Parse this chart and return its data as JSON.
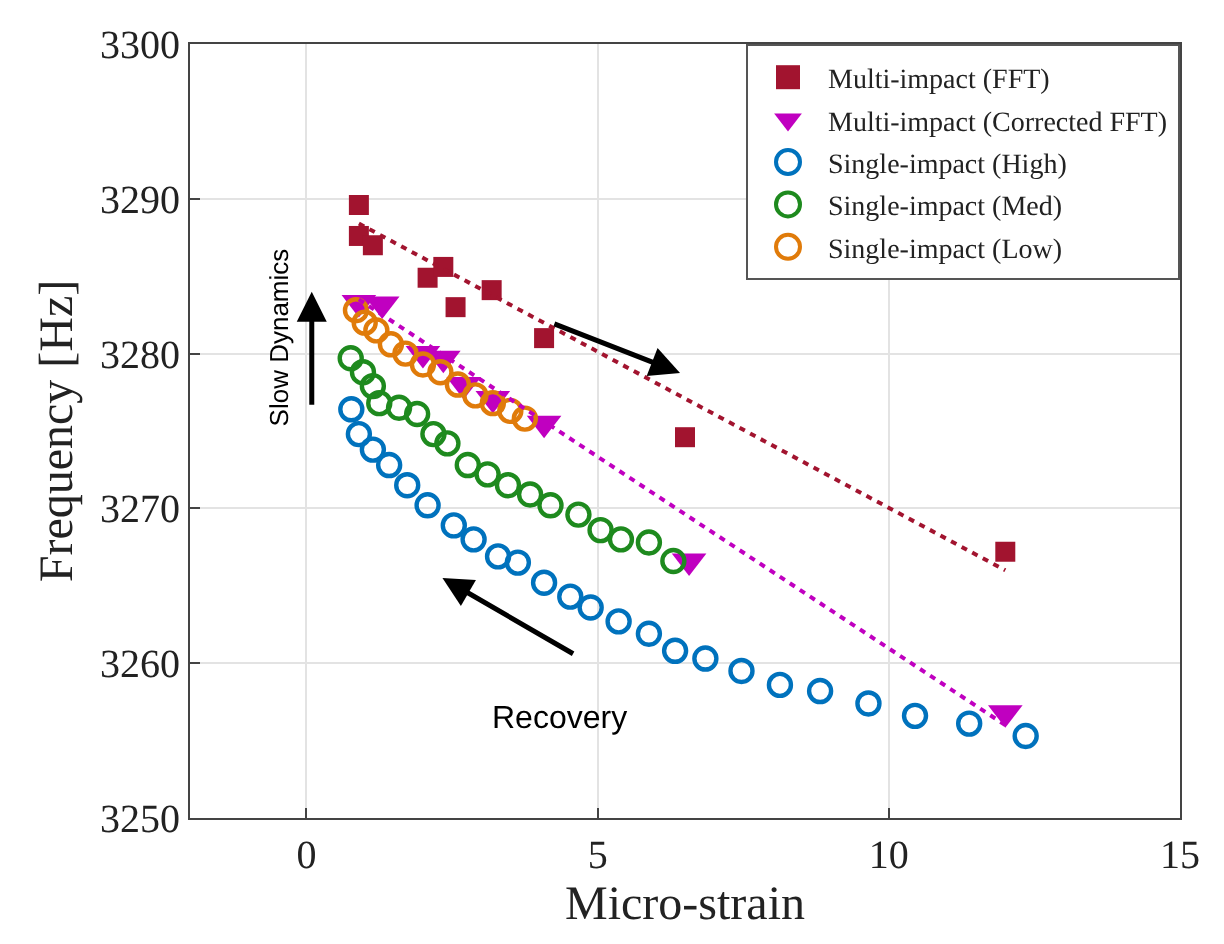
{
  "chart_data": {
    "type": "scatter",
    "xlabel": "Micro-strain",
    "ylabel": "Frequency [Hz]",
    "xlim": [
      -2,
      15
    ],
    "ylim": [
      3250,
      3300
    ],
    "xticks": [
      0,
      5,
      10,
      15
    ],
    "yticks": [
      3250,
      3260,
      3270,
      3280,
      3290,
      3300
    ],
    "grid": true,
    "legend": "top right",
    "annotations": [
      "Slow Dynamics",
      "Recovery"
    ],
    "series": [
      {
        "name": "Multi-impact (FFT)",
        "color": "#a2142f",
        "marker": "square",
        "x": [
          0.9,
          0.9,
          1.14,
          2.08,
          2.35,
          2.56,
          3.18,
          4.08,
          6.5,
          12.0
        ],
        "values": [
          3289.6,
          3287.6,
          3287.0,
          3284.9,
          3285.6,
          3283.0,
          3284.1,
          3281.0,
          3274.6,
          3267.2
        ]
      },
      {
        "name": "Multi-impact (Corrected FFT)",
        "color": "#c000c0",
        "marker": "triangle",
        "x": [
          0.9,
          1.3,
          2.0,
          2.35,
          2.7,
          3.2,
          4.08,
          6.57,
          12.0
        ],
        "values": [
          3283.3,
          3283.2,
          3280.0,
          3279.7,
          3278.0,
          3277.1,
          3275.5,
          3266.6,
          3256.8
        ]
      },
      {
        "name": "Single-impact (High)",
        "color": "#0072bd",
        "marker": "circle",
        "x": [
          0.77,
          0.9,
          1.14,
          1.42,
          1.73,
          2.08,
          2.53,
          2.87,
          3.29,
          3.63,
          4.08,
          4.53,
          4.88,
          5.36,
          5.88,
          6.33,
          6.85,
          7.47,
          8.13,
          8.82,
          9.65,
          10.45,
          11.38,
          12.35
        ],
        "values": [
          3276.4,
          3274.8,
          3273.8,
          3272.8,
          3271.5,
          3270.2,
          3268.9,
          3268.0,
          3266.9,
          3266.5,
          3265.2,
          3264.3,
          3263.6,
          3262.7,
          3261.9,
          3260.8,
          3260.3,
          3259.5,
          3258.6,
          3258.2,
          3257.4,
          3256.6,
          3256.1,
          3255.3
        ]
      },
      {
        "name": "Single-impact (Med)",
        "color": "#1e8a1e",
        "marker": "circle",
        "x": [
          0.76,
          0.97,
          1.14,
          1.25,
          1.59,
          1.9,
          2.18,
          2.42,
          2.77,
          3.11,
          3.46,
          3.84,
          4.19,
          4.67,
          5.05,
          5.4,
          5.88,
          6.3
        ],
        "values": [
          3279.7,
          3278.8,
          3277.9,
          3276.8,
          3276.5,
          3276.1,
          3274.8,
          3274.2,
          3272.8,
          3272.2,
          3271.5,
          3270.9,
          3270.2,
          3269.6,
          3268.6,
          3268.0,
          3267.8,
          3266.6
        ]
      },
      {
        "name": "Single-impact (Low)",
        "color": "#e07b0a",
        "marker": "circle",
        "x": [
          0.85,
          1.0,
          1.2,
          1.45,
          1.7,
          2.0,
          2.3,
          2.6,
          2.9,
          3.2,
          3.5,
          3.75
        ],
        "values": [
          3282.8,
          3282.0,
          3281.5,
          3280.6,
          3280.0,
          3279.3,
          3278.8,
          3278.0,
          3277.3,
          3276.8,
          3276.3,
          3275.8
        ]
      },
      {
        "type": "line",
        "color": "#a2142f",
        "line_style": "dotted",
        "x": [
          0.9,
          12.0
        ],
        "values": [
          3288.4,
          3266.0
        ]
      },
      {
        "type": "line",
        "color": "#c000c0",
        "line_style": "dotted",
        "x": [
          0.9,
          12.0
        ],
        "values": [
          3283.5,
          3256.0
        ]
      }
    ]
  }
}
